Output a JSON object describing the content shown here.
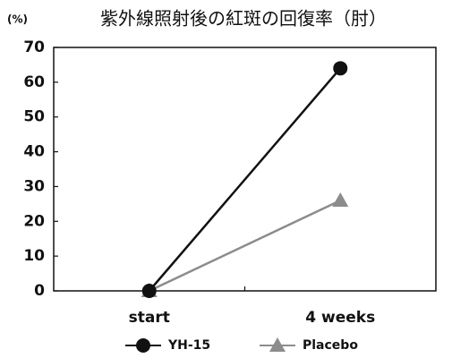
{
  "chart_data": {
    "type": "line",
    "title": "紫外線照射後の紅斑の回復率（肘）",
    "y_label": "(%)",
    "categories": [
      "start",
      "4 weeks"
    ],
    "series": [
      {
        "name": "YH-15",
        "color": "#111111",
        "marker": "circle",
        "values": [
          0,
          64
        ]
      },
      {
        "name": "Placebo",
        "color": "#8c8c8c",
        "marker": "triangle",
        "values": [
          0,
          26
        ]
      }
    ],
    "ylim": [
      0,
      70
    ],
    "yticks": [
      0,
      10,
      20,
      30,
      40,
      50,
      60,
      70
    ],
    "grid": false,
    "legend": "bottom"
  }
}
